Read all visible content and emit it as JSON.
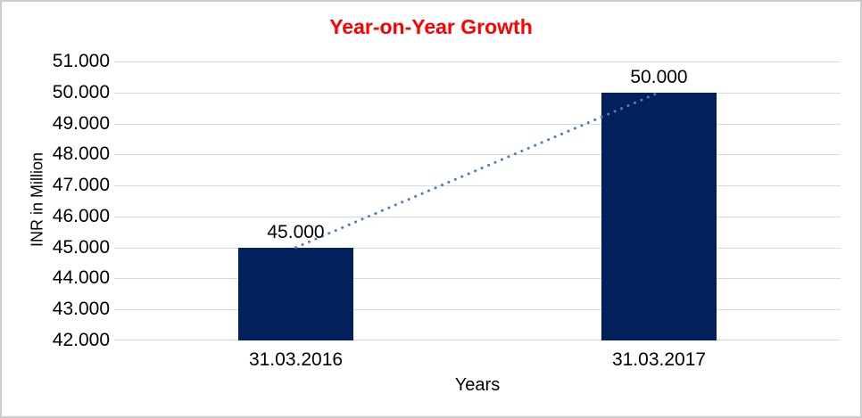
{
  "frame": {
    "border_color": "#cccccc",
    "background": "#ffffff"
  },
  "chart_data": {
    "type": "bar",
    "title": "Year-on-Year Growth",
    "title_color": "#FF0000",
    "xlabel": "Years",
    "ylabel": "INR in Million",
    "categories": [
      "31.03.2016",
      "31.03.2017"
    ],
    "values": [
      45000,
      50000
    ],
    "value_labels": [
      "45.000",
      "50.000"
    ],
    "ylim": [
      42000,
      51000
    ],
    "y_ticks": [
      {
        "value": 51000,
        "label": "51.000"
      },
      {
        "value": 50000,
        "label": "50.000"
      },
      {
        "value": 49000,
        "label": "49.000"
      },
      {
        "value": 48000,
        "label": "48.000"
      },
      {
        "value": 47000,
        "label": "47.000"
      },
      {
        "value": 46000,
        "label": "46.000"
      },
      {
        "value": 45000,
        "label": "45.000"
      },
      {
        "value": 44000,
        "label": "44.000"
      },
      {
        "value": 43000,
        "label": "43.000"
      },
      {
        "value": 42000,
        "label": "42.000"
      }
    ],
    "grid": true,
    "legend": false,
    "bar_color": "#02215C",
    "gridline_color": "#D9D9D9",
    "axis_text_color": "#000000",
    "trendline": {
      "style": "dotted",
      "color": "#4A7EBB",
      "from": {
        "category": "31.03.2016",
        "value": 45000
      },
      "to": {
        "category": "31.03.2017",
        "value": 50000
      }
    }
  }
}
